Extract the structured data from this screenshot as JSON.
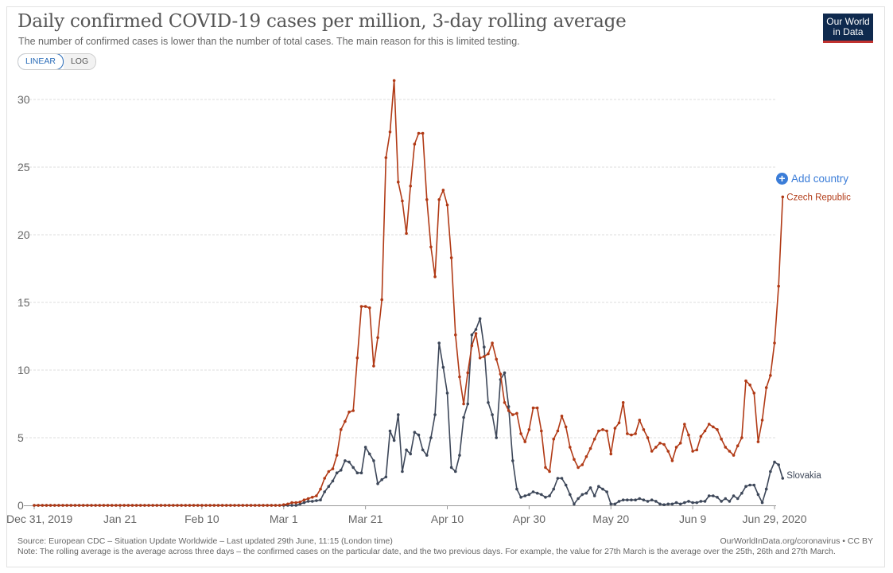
{
  "header": {
    "title": "Daily confirmed COVID-19 cases per million, 3-day rolling average",
    "subtitle": "The number of confirmed cases is lower than the number of total cases. The main reason for this is limited testing.",
    "logo_line1": "Our World",
    "logo_line2": "in Data",
    "scale_linear": "LINEAR",
    "scale_log": "LOG"
  },
  "controls": {
    "add_country": "Add country"
  },
  "footer": {
    "source": "Source: European CDC – Situation Update Worldwide – Last updated 29th June, 11:15 (London time)",
    "note": "Note: The rolling average is the average across three days – the confirmed cases on the particular date, and the two previous days. For example, the value for 27th March is the average over the 25th, 26th and 27th March.",
    "credit": "OurWorldInData.org/coronavirus • CC BY"
  },
  "colors": {
    "czech": "#b13a16",
    "slovakia": "#3d4759",
    "grid": "#dddddd"
  },
  "chart_data": {
    "type": "line",
    "title": "Daily confirmed COVID-19 cases per million, 3-day rolling average",
    "xlabel": "",
    "ylabel": "",
    "ylim": [
      0,
      31
    ],
    "yticks": [
      0,
      5,
      10,
      15,
      20,
      25,
      30
    ],
    "x_start": "Dec 31, 2019",
    "x_end": "Jun 29, 2020",
    "n_days": 182,
    "xticks": [
      {
        "day": 0,
        "label": "Dec 31, 2019"
      },
      {
        "day": 21,
        "label": "Jan 21"
      },
      {
        "day": 41,
        "label": "Feb 10"
      },
      {
        "day": 61,
        "label": "Mar 1"
      },
      {
        "day": 81,
        "label": "Mar 21"
      },
      {
        "day": 101,
        "label": "Apr 10"
      },
      {
        "day": 121,
        "label": "Apr 30"
      },
      {
        "day": 141,
        "label": "May 20"
      },
      {
        "day": 161,
        "label": "Jun 9"
      },
      {
        "day": 181,
        "label": "Jun 29, 2020"
      }
    ],
    "series": [
      {
        "name": "Czech Republic",
        "start_day": 0,
        "values": [
          0,
          0,
          0,
          0,
          0,
          0,
          0,
          0,
          0,
          0,
          0,
          0,
          0,
          0,
          0,
          0,
          0,
          0,
          0,
          0,
          0,
          0,
          0,
          0,
          0,
          0,
          0,
          0,
          0,
          0,
          0,
          0,
          0,
          0,
          0,
          0,
          0,
          0,
          0,
          0,
          0,
          0,
          0,
          0,
          0,
          0,
          0,
          0,
          0,
          0,
          0,
          0,
          0,
          0,
          0,
          0,
          0,
          0,
          0,
          0,
          0,
          0.05,
          0.1,
          0.2,
          0.2,
          0.25,
          0.4,
          0.5,
          0.6,
          0.7,
          1.2,
          2.0,
          2.5,
          2.7,
          3.7,
          5.6,
          6.2,
          6.9,
          7.0,
          10.9,
          14.7,
          14.7,
          14.6,
          10.3,
          12.4,
          15.2,
          25.7,
          27.6,
          31.4,
          23.9,
          22.5,
          20.1,
          23.6,
          26.7,
          27.5,
          27.5,
          22.6,
          19.1,
          16.9,
          22.6,
          23.3,
          22.2,
          18.3,
          12.6,
          9.5,
          7.5,
          9.8,
          11.8,
          12.7,
          10.9,
          11.0,
          11.2,
          12.0,
          10.8,
          9.7,
          7.6,
          7.0,
          6.7,
          6.8,
          5.3,
          4.7,
          5.6,
          7.2,
          7.2,
          5.5,
          2.8,
          2.5,
          4.9,
          5.5,
          6.6,
          5.8,
          4.3,
          3.4,
          2.8,
          3.0,
          3.6,
          4.2,
          4.9,
          5.5,
          5.6,
          5.5,
          3.8,
          5.7,
          6.1,
          7.6,
          5.3,
          5.2,
          5.3,
          6.3,
          5.6,
          5.0,
          4.0,
          4.3,
          4.6,
          4.5,
          4.0,
          3.3,
          4.3,
          4.6,
          6.0,
          5.2,
          4.0,
          4.1,
          5.1,
          5.5,
          6.0,
          5.8,
          5.6,
          4.9,
          4.3,
          4.0,
          3.7,
          4.4,
          5.0,
          9.2,
          8.9,
          8.3,
          4.7,
          6.3,
          8.7,
          9.6,
          12.0,
          16.2,
          22.8
        ]
      },
      {
        "name": "Slovakia",
        "start_day": 0,
        "values": [
          0,
          0,
          0,
          0,
          0,
          0,
          0,
          0,
          0,
          0,
          0,
          0,
          0,
          0,
          0,
          0,
          0,
          0,
          0,
          0,
          0,
          0,
          0,
          0,
          0,
          0,
          0,
          0,
          0,
          0,
          0,
          0,
          0,
          0,
          0,
          0,
          0,
          0,
          0,
          0,
          0,
          0,
          0,
          0,
          0,
          0,
          0,
          0,
          0,
          0,
          0,
          0,
          0,
          0,
          0,
          0,
          0,
          0,
          0,
          0,
          0,
          0,
          0,
          0,
          0,
          0.1,
          0.2,
          0.3,
          0.3,
          0.35,
          0.4,
          1.0,
          1.4,
          1.8,
          2.4,
          2.6,
          3.3,
          3.2,
          2.8,
          2.4,
          2.4,
          4.3,
          3.8,
          3.3,
          1.6,
          1.9,
          2.1,
          5.5,
          4.8,
          6.7,
          2.5,
          4.1,
          3.8,
          5.4,
          5.2,
          4.1,
          3.7,
          5.0,
          6.7,
          12.0,
          10.2,
          8.3,
          2.8,
          2.5,
          3.7,
          6.5,
          7.5,
          12.6,
          13.0,
          13.8,
          11.7,
          7.6,
          6.7,
          5.0,
          9.3,
          9.8,
          7.3,
          3.3,
          1.2,
          0.6,
          0.7,
          0.8,
          1.0,
          0.9,
          0.8,
          0.6,
          0.7,
          1.2,
          2.0,
          2.0,
          1.5,
          0.8,
          0.1,
          0.5,
          0.8,
          0.9,
          1.3,
          0.7,
          1.4,
          1.2,
          1.0,
          0.1,
          0.1,
          0.3,
          0.4,
          0.4,
          0.4,
          0.4,
          0.5,
          0.4,
          0.3,
          0.4,
          0.3,
          0.1,
          0.05,
          0.1,
          0.1,
          0.2,
          0.1,
          0.2,
          0.3,
          0.2,
          0.2,
          0.3,
          0.3,
          0.7,
          0.7,
          0.6,
          0.3,
          0.5,
          0.3,
          0.7,
          0.5,
          0.9,
          1.4,
          1.5,
          1.5,
          0.8,
          0.2,
          1.2,
          2.5,
          3.2,
          3.0,
          2.0
        ]
      }
    ]
  }
}
